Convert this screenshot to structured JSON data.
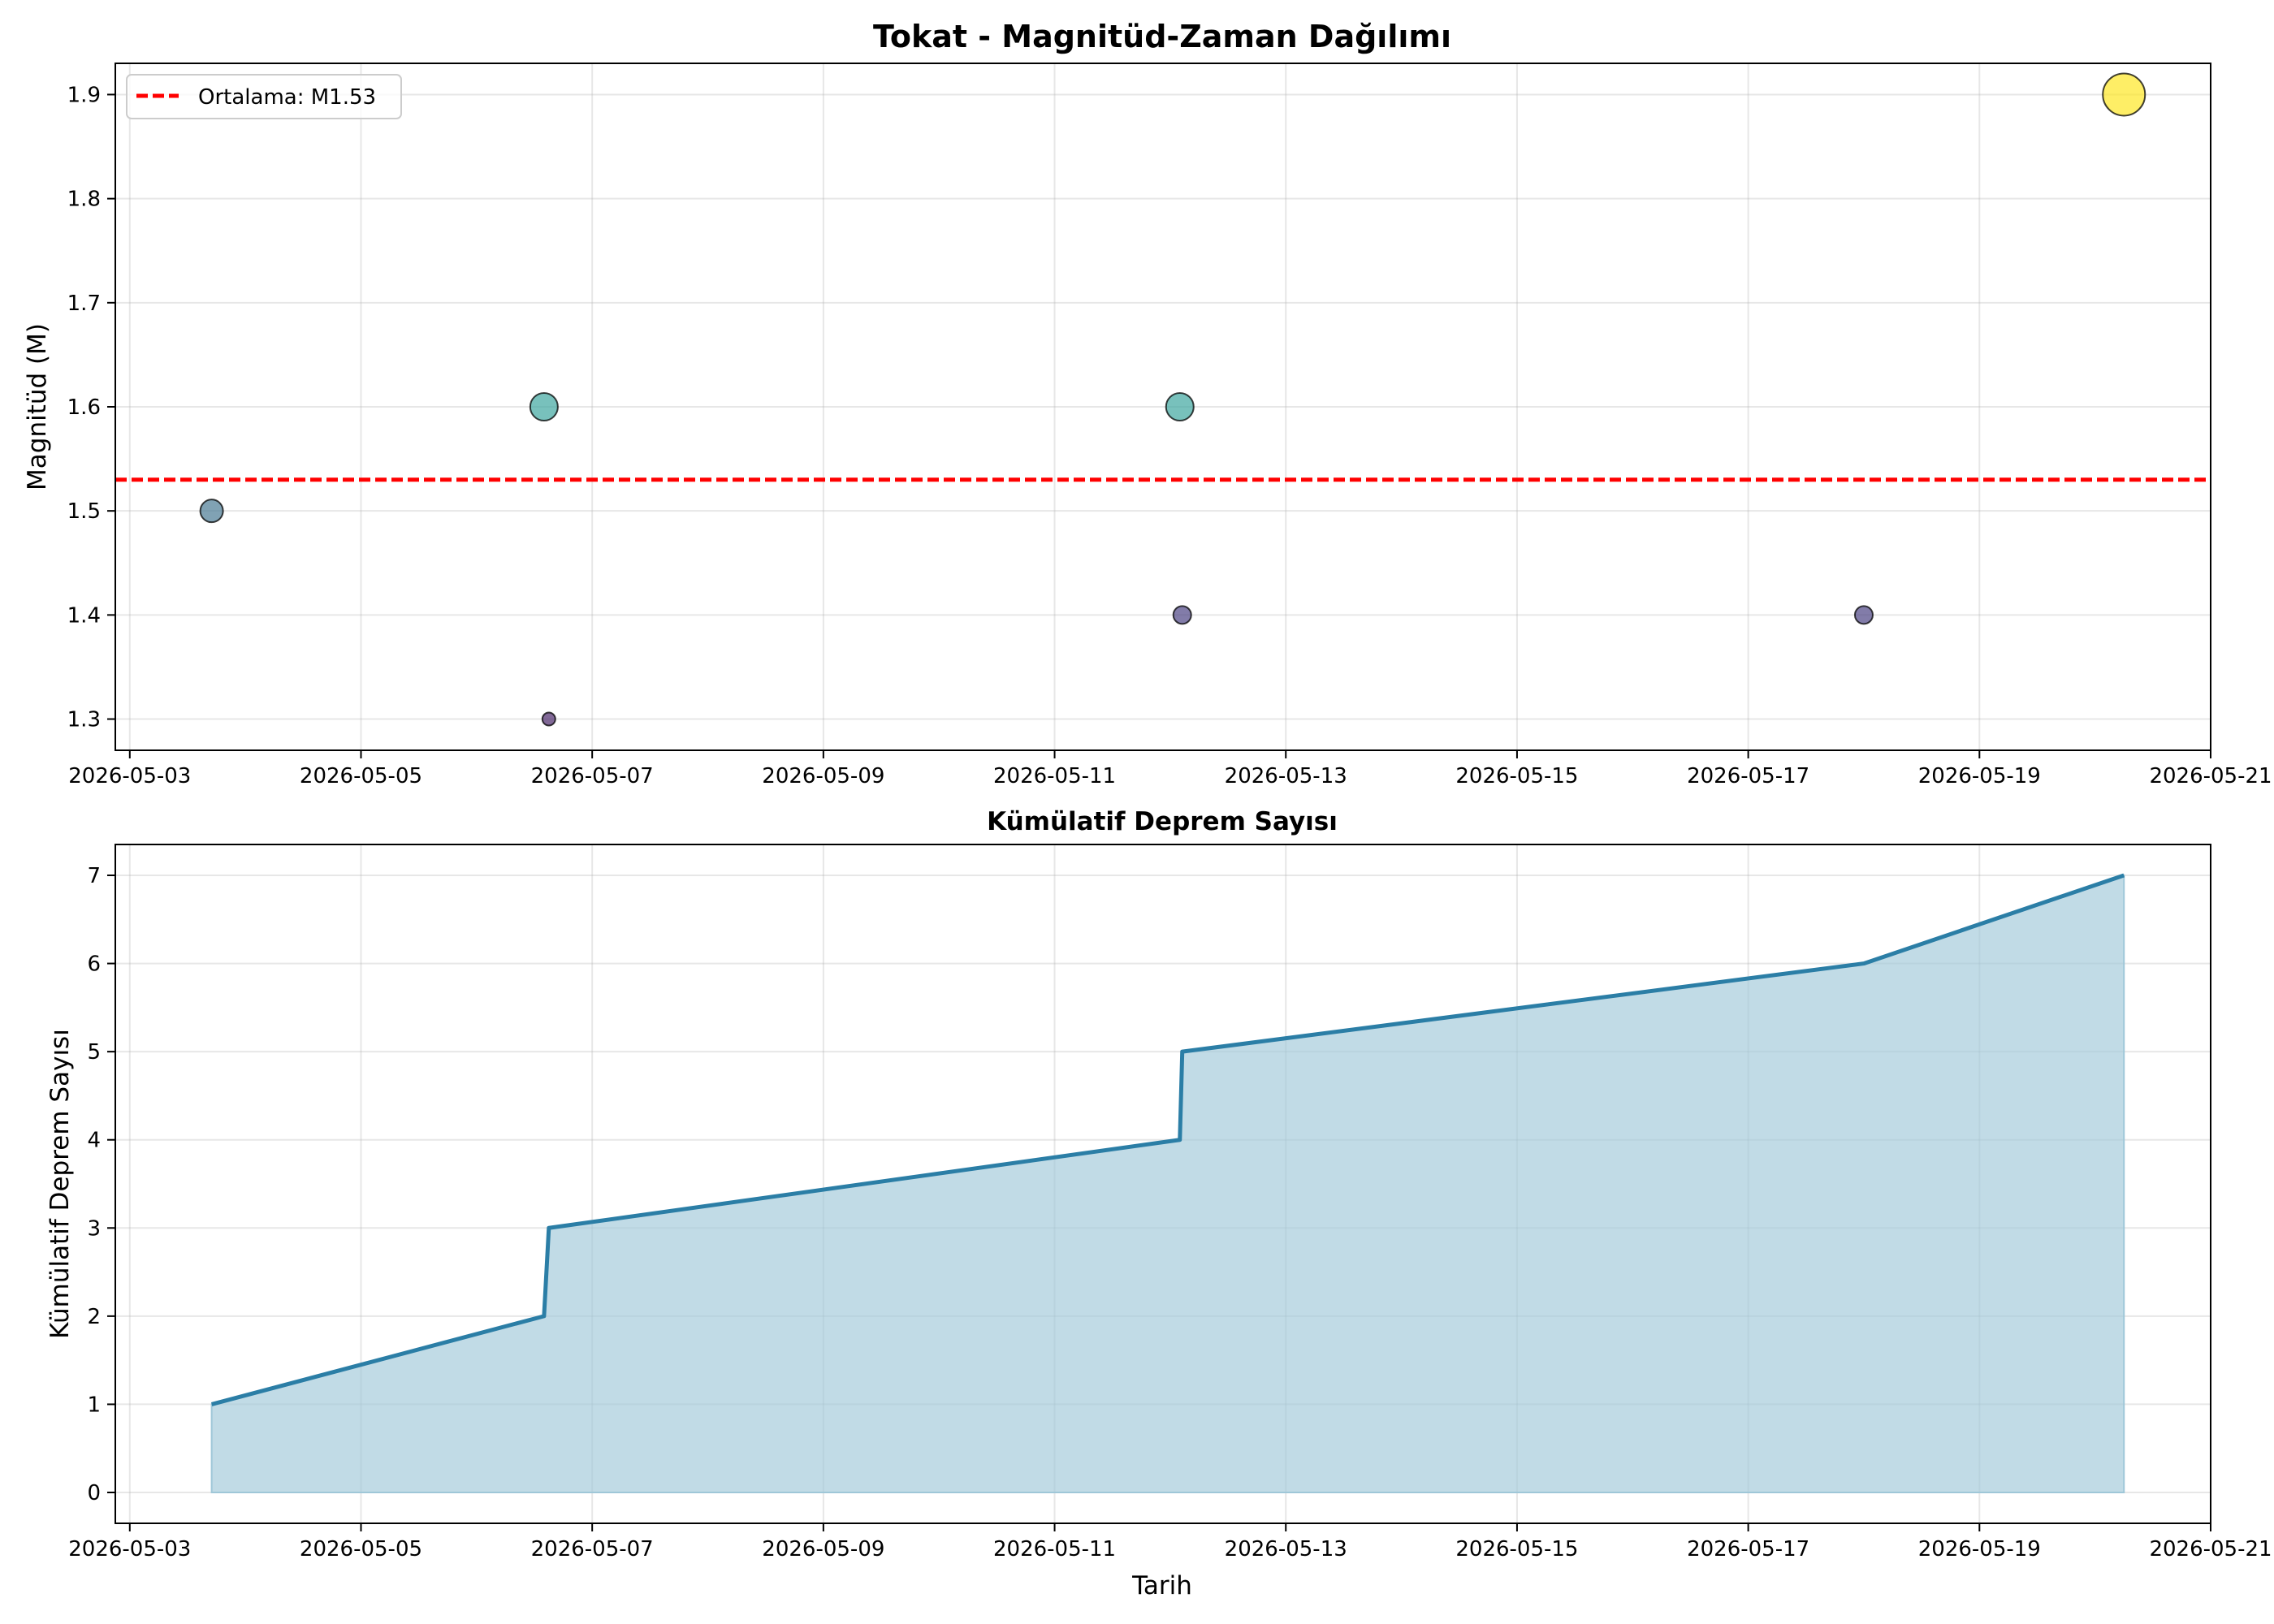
{
  "chart_data": [
    {
      "type": "scatter",
      "title": "Tokat - Magnitüd-Zaman Dağılımı",
      "xlabel": "",
      "ylabel": "Magnitüd (M)",
      "x_ticks": [
        "2026-05-03",
        "2026-05-05",
        "2026-05-07",
        "2026-05-09",
        "2026-05-11",
        "2026-05-13",
        "2026-05-15",
        "2026-05-17",
        "2026-05-19",
        "2026-05-21"
      ],
      "y_ticks": [
        "1.3",
        "1.4",
        "1.5",
        "1.6",
        "1.7",
        "1.8",
        "1.9"
      ],
      "xlim": [
        "2026-05-02T21:00",
        "2026-05-21T00:00"
      ],
      "ylim": [
        1.27,
        1.93
      ],
      "grid": true,
      "legend_position": "top-left",
      "points": [
        {
          "x": "2026-05-03T17:00",
          "y": 1.5,
          "color": "#4a7a94"
        },
        {
          "x": "2026-05-06T14:00",
          "y": 1.6,
          "color": "#3fa6a0"
        },
        {
          "x": "2026-05-06T15:00",
          "y": 1.3,
          "color": "#4b2a6b"
        },
        {
          "x": "2026-05-12T02:00",
          "y": 1.6,
          "color": "#3fa6a0"
        },
        {
          "x": "2026-05-12T02:30",
          "y": 1.4,
          "color": "#4d4584"
        },
        {
          "x": "2026-05-18T00:00",
          "y": 1.4,
          "color": "#4d4584"
        },
        {
          "x": "2026-05-20T06:00",
          "y": 1.9,
          "color": "#fde725"
        }
      ],
      "mean_line": {
        "value": 1.53,
        "label": "Ortalama: M1.53",
        "color": "#ff0000"
      }
    },
    {
      "type": "area",
      "title": "Kümülatif Deprem Sayısı",
      "xlabel": "Tarih",
      "ylabel": "Kümülatif Deprem Sayısı",
      "x_ticks": [
        "2026-05-03",
        "2026-05-05",
        "2026-05-07",
        "2026-05-09",
        "2026-05-11",
        "2026-05-13",
        "2026-05-15",
        "2026-05-17",
        "2026-05-19",
        "2026-05-21"
      ],
      "y_ticks": [
        "0",
        "1",
        "2",
        "3",
        "4",
        "5",
        "6",
        "7"
      ],
      "xlim": [
        "2026-05-02T21:00",
        "2026-05-21T00:00"
      ],
      "ylim": [
        -0.35,
        7.35
      ],
      "grid": true,
      "line_color": "#2b7ea6",
      "fill_color": "#9fc7d8",
      "points": [
        {
          "x": "2026-05-03T17:00",
          "y": 1
        },
        {
          "x": "2026-05-06T14:00",
          "y": 2
        },
        {
          "x": "2026-05-06T15:00",
          "y": 3
        },
        {
          "x": "2026-05-12T02:00",
          "y": 4
        },
        {
          "x": "2026-05-12T02:30",
          "y": 5
        },
        {
          "x": "2026-05-18T00:00",
          "y": 6
        },
        {
          "x": "2026-05-20T06:00",
          "y": 7
        }
      ]
    }
  ]
}
